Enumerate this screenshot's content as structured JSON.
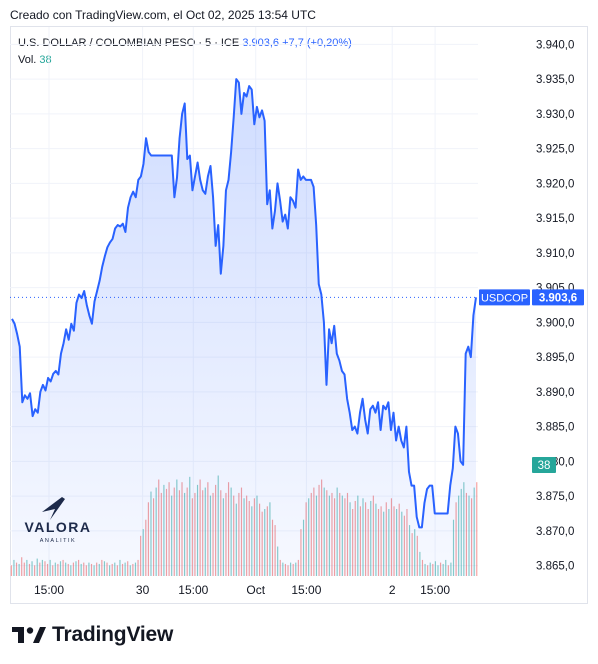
{
  "header": {
    "caption": "Creado con TradingView.com, el Oct 02, 2025 13:54 UTC"
  },
  "legend": {
    "symbol": "U.S. DOLLAR / COLOMBIAN PESO · 5 · ICE",
    "price": "3.903,6",
    "change": "+7,7 (+0,20%)",
    "vol_label": "Vol.",
    "vol_value": "38"
  },
  "watermark": {
    "brand": "VALORA",
    "sub": "ANALITIK"
  },
  "footer": {
    "brand": "TradingView"
  },
  "colors": {
    "line": "#2962ff",
    "area_top": "#d6e0fb",
    "vol_up": "#26a69a",
    "vol_down": "#ef5350",
    "price_label_bg": "#2962ff",
    "vol_label_bg": "#26a69a"
  },
  "chart_data": {
    "type": "area",
    "title": "U.S. DOLLAR / COLOMBIAN PESO · 5 · ICE",
    "y_axis": {
      "ticks": [
        3865.0,
        3870.0,
        3875.0,
        3880.0,
        3885.0,
        3890.0,
        3895.0,
        3900.0,
        3905.0,
        3910.0,
        3915.0,
        3920.0,
        3925.0,
        3930.0,
        3935.0,
        3940.0
      ],
      "tick_labels": [
        "3.865,0",
        "3.870,0",
        "3.875,0",
        "3.880,0",
        "3.885,0",
        "3.890,0",
        "3.895,0",
        "3.900,0",
        "3.905,0",
        "3.910,0",
        "3.915,0",
        "3.920,0",
        "3.925,0",
        "3.930,0",
        "3.935,0",
        "3.940,0"
      ],
      "range": [
        3863.5,
        3942.5
      ]
    },
    "x_axis": {
      "tick_labels": [
        "15:00",
        "30",
        "15:00",
        "Oct",
        "15:00",
        "2",
        "15:00"
      ],
      "tick_index": [
        10,
        34,
        47,
        63,
        76,
        98,
        109
      ],
      "range": [
        0,
        120
      ]
    },
    "current_price": {
      "value": 3903.6,
      "label": "3.903,6",
      "tag": "USDCOP"
    },
    "current_volume": {
      "label": "38"
    },
    "series": [
      {
        "values": [
          3900.5,
          3899.8,
          3898.3,
          3896.5,
          3888.5,
          3889.5,
          3889.0,
          3889.8,
          3886.5,
          3887.5,
          3887.0,
          3890.0,
          3891.0,
          3890.2,
          3892.0,
          3891.5,
          3892.6,
          3893.0,
          3892.5,
          3895.5,
          3897.0,
          3899.0,
          3897.5,
          3899.8,
          3898.8,
          3902.8,
          3904.0,
          3903.5,
          3904.5,
          3902.5,
          3901.0,
          3899.8,
          3903.0,
          3904.5,
          3906.0,
          3908.0,
          3909.5,
          3910.8,
          3911.5,
          3912.0,
          3913.5,
          3914.0,
          3913.8,
          3914.2,
          3913.0,
          3916.5,
          3918.0,
          3918.8,
          3918.0,
          3920.5,
          3921.0,
          3922.8,
          3926.5,
          3924.5,
          3924.0,
          3924.0,
          3924.0,
          3924.0,
          3924.0,
          3924.0,
          3924.0,
          3924.0,
          3924.0,
          3918.0,
          3920.8,
          3926.5,
          3930.0,
          3931.5,
          3923.5,
          3924.0,
          3919.0,
          3921.0,
          3923.0,
          3920.5,
          3919.0,
          3918.5,
          3921.0,
          3922.5,
          3918.0,
          3911.0,
          3914.0,
          3907.0,
          3911.0,
          3919.0,
          3920.5,
          3924.5,
          3929.5,
          3935.0,
          3934.5,
          3930.0,
          3933.0,
          3932.5,
          3934.0,
          3933.5,
          3928.5,
          3931.0,
          3929.5,
          3930.5,
          3929.0,
          3917.0,
          3919.0,
          3913.5,
          3916.0,
          3920.0,
          3917.5,
          3914.5,
          3915.5,
          3913.5,
          3918.0,
          3917.5,
          3916.5,
          3922.0,
          3920.5,
          3921.0,
          3920.5,
          3920.5,
          3920.5,
          3919.5,
          3914.0,
          3905.5,
          3904.0,
          3900.0,
          3891.0,
          3899.0,
          3897.0,
          3899.5,
          3895.5,
          3894.5,
          3893.0,
          3892.5,
          3889.0,
          3887.0,
          3884.5,
          3885.0,
          3884.0,
          3887.0,
          3889.0,
          3886.0,
          3884.0,
          3887.5,
          3888.0,
          3887.0,
          3888.5,
          3884.5,
          3888.0,
          3887.5,
          3888.5,
          3884.5,
          3887.0,
          3883.0,
          3885.0,
          3883.0,
          3882.0,
          3885.0,
          3878.5,
          3876.5,
          3876.5,
          3872.0,
          3870.5,
          3870.5,
          3874.0,
          3876.0,
          3876.5,
          3876.5,
          3872.5,
          3872.5,
          3872.5,
          3872.5,
          3872.5,
          3872.5,
          3876.5,
          3879.0,
          3885.0,
          3884.0,
          3880.0,
          3879.5,
          3895.5,
          3896.5,
          3895.0,
          3901.0,
          3903.6
        ]
      }
    ],
    "volume": {
      "levels": [
        0.08,
        0.12,
        0.1,
        0.09,
        0.14,
        0.1,
        0.12,
        0.09,
        0.11,
        0.08,
        0.13,
        0.1,
        0.12,
        0.11,
        0.09,
        0.12,
        0.08,
        0.1,
        0.09,
        0.11,
        0.12,
        0.1,
        0.09,
        0.08,
        0.1,
        0.11,
        0.12,
        0.09,
        0.1,
        0.08,
        0.1,
        0.09,
        0.08,
        0.1,
        0.09,
        0.12,
        0.11,
        0.1,
        0.08,
        0.09,
        0.1,
        0.08,
        0.12,
        0.09,
        0.1,
        0.11,
        0.08,
        0.09,
        0.1,
        0.12,
        0.3,
        0.35,
        0.42,
        0.55,
        0.63,
        0.58,
        0.66,
        0.72,
        0.62,
        0.68,
        0.65,
        0.7,
        0.6,
        0.66,
        0.72,
        0.64,
        0.7,
        0.62,
        0.66,
        0.74,
        0.58,
        0.62,
        0.68,
        0.72,
        0.64,
        0.66,
        0.7,
        0.6,
        0.62,
        0.68,
        0.75,
        0.64,
        0.58,
        0.62,
        0.7,
        0.66,
        0.6,
        0.54,
        0.62,
        0.66,
        0.58,
        0.6,
        0.56,
        0.52,
        0.58,
        0.6,
        0.54,
        0.48,
        0.5,
        0.52,
        0.55,
        0.42,
        0.38,
        0.22,
        0.12,
        0.1,
        0.09,
        0.08,
        0.1,
        0.09,
        0.1,
        0.12,
        0.35,
        0.42,
        0.55,
        0.58,
        0.62,
        0.66,
        0.6,
        0.68,
        0.72,
        0.66,
        0.64,
        0.6,
        0.62,
        0.58,
        0.66,
        0.62,
        0.6,
        0.58,
        0.62,
        0.55,
        0.5,
        0.56,
        0.6,
        0.52,
        0.58,
        0.55,
        0.5,
        0.56,
        0.6,
        0.54,
        0.5,
        0.52,
        0.48,
        0.55,
        0.5,
        0.58,
        0.52,
        0.5,
        0.54,
        0.48,
        0.45,
        0.5,
        0.38,
        0.32,
        0.35,
        0.3,
        0.18,
        0.12,
        0.09,
        0.08,
        0.1,
        0.09,
        0.11,
        0.08,
        0.1,
        0.09,
        0.12,
        0.08,
        0.1,
        0.42,
        0.55,
        0.6,
        0.65,
        0.7,
        0.62,
        0.6,
        0.58,
        0.66,
        0.7
      ],
      "down_bar": [
        true,
        false,
        true,
        false,
        true,
        true,
        false,
        true,
        false,
        true,
        false,
        true,
        false,
        true,
        true,
        false,
        true,
        false,
        true,
        false,
        true,
        false,
        true,
        false,
        true,
        false,
        true,
        false,
        true,
        true,
        false,
        true,
        false,
        true,
        false,
        true,
        false,
        true,
        false,
        true,
        false,
        true,
        false,
        true,
        false,
        true,
        false,
        true,
        false,
        true,
        true,
        false,
        true,
        true,
        false,
        true,
        false,
        true,
        true,
        false,
        true,
        true,
        false,
        true,
        false,
        true,
        true,
        false,
        true,
        false,
        true,
        true,
        false,
        true,
        true,
        false,
        true,
        false,
        true,
        true,
        false,
        true,
        false,
        true,
        true,
        false,
        true,
        false,
        true,
        true,
        false,
        true,
        true,
        false,
        true,
        false,
        true,
        true,
        false,
        true,
        false,
        true,
        true,
        false,
        true,
        false,
        true,
        true,
        false,
        true,
        false,
        true,
        true,
        false,
        true,
        false,
        true,
        true,
        false,
        true,
        true,
        false,
        true,
        false,
        true,
        true,
        false,
        true,
        false,
        true,
        true,
        false,
        true,
        true,
        false,
        true,
        false,
        true,
        true,
        false,
        true,
        false,
        true,
        true,
        false,
        true,
        false,
        true,
        true,
        false,
        true,
        false,
        true,
        true,
        false,
        true,
        false,
        true,
        false,
        true,
        false,
        true,
        false,
        true,
        false,
        false,
        true,
        false,
        false,
        true,
        false,
        false,
        true,
        false,
        false,
        false
      ]
    }
  }
}
